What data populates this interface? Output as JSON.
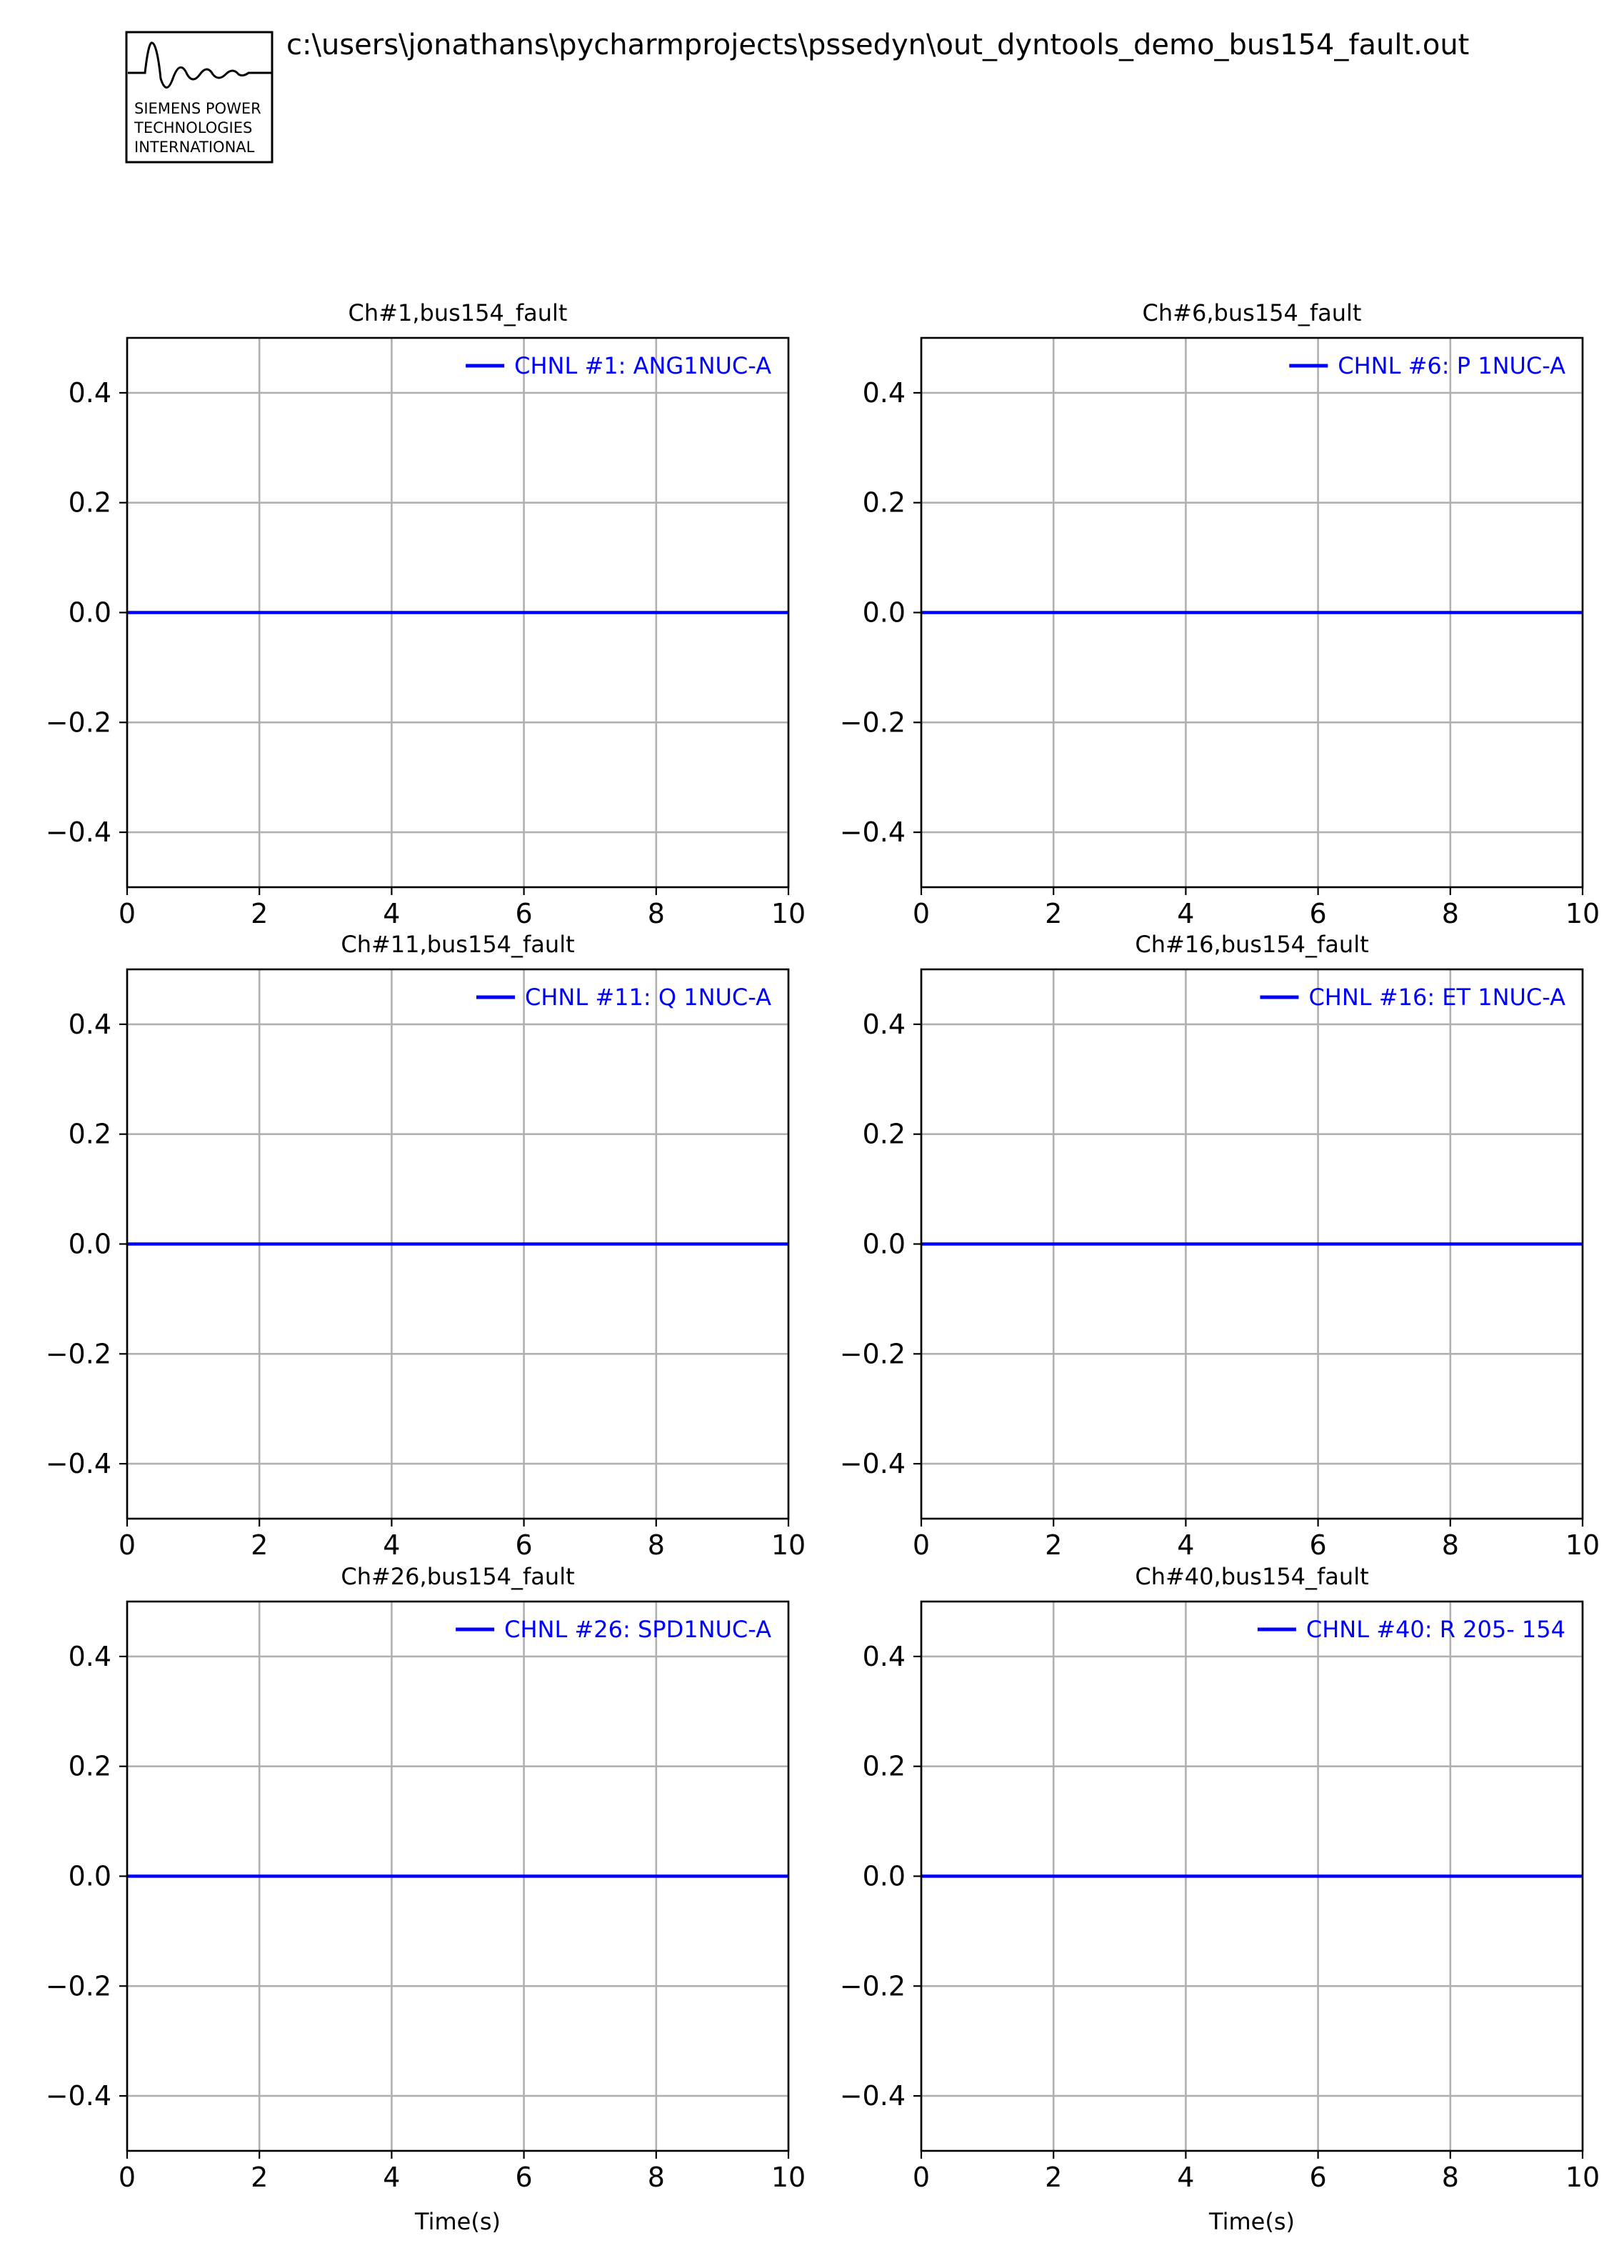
{
  "file_path": "c:\\users\\jonathans\\pycharmprojects\\pssedyn\\out_dyntools_demo_bus154_fault.out",
  "logo": {
    "lines": [
      "SIEMENS POWER",
      "TECHNOLOGIES",
      "INTERNATIONAL"
    ]
  },
  "colors": {
    "series": "#0000ff",
    "grid": "#b0b0b0",
    "axes": "#000000"
  },
  "chart_data": [
    {
      "type": "line",
      "title": "Ch#1,bus154_fault",
      "xlabel": "",
      "ylabel": "",
      "xlim": [
        0,
        10
      ],
      "ylim": [
        -0.5,
        0.5
      ],
      "xticks": [
        0,
        2,
        4,
        6,
        8,
        10
      ],
      "yticks": [
        0.4,
        0.2,
        0.0,
        -0.2,
        -0.4
      ],
      "xtick_labels": [
        "0",
        "2",
        "4",
        "6",
        "8",
        "10"
      ],
      "ytick_labels": [
        "0.4",
        "0.2",
        "0.0",
        "−0.2",
        "−0.4"
      ],
      "grid": true,
      "legend_position": "top-right",
      "series": [
        {
          "name": "CHNL #1: ANG1NUC-A",
          "x": [
            0,
            10
          ],
          "y": [
            0,
            0
          ]
        }
      ]
    },
    {
      "type": "line",
      "title": "Ch#6,bus154_fault",
      "xlabel": "",
      "ylabel": "",
      "xlim": [
        0,
        10
      ],
      "ylim": [
        -0.5,
        0.5
      ],
      "xticks": [
        0,
        2,
        4,
        6,
        8,
        10
      ],
      "yticks": [
        0.4,
        0.2,
        0.0,
        -0.2,
        -0.4
      ],
      "xtick_labels": [
        "0",
        "2",
        "4",
        "6",
        "8",
        "10"
      ],
      "ytick_labels": [
        "0.4",
        "0.2",
        "0.0",
        "−0.2",
        "−0.4"
      ],
      "grid": true,
      "legend_position": "top-right",
      "series": [
        {
          "name": "CHNL #6: P 1NUC-A",
          "x": [
            0,
            10
          ],
          "y": [
            0,
            0
          ]
        }
      ]
    },
    {
      "type": "line",
      "title": "Ch#11,bus154_fault",
      "xlabel": "",
      "ylabel": "",
      "xlim": [
        0,
        10
      ],
      "ylim": [
        -0.5,
        0.5
      ],
      "xticks": [
        0,
        2,
        4,
        6,
        8,
        10
      ],
      "yticks": [
        0.4,
        0.2,
        0.0,
        -0.2,
        -0.4
      ],
      "xtick_labels": [
        "0",
        "2",
        "4",
        "6",
        "8",
        "10"
      ],
      "ytick_labels": [
        "0.4",
        "0.2",
        "0.0",
        "−0.2",
        "−0.4"
      ],
      "grid": true,
      "legend_position": "top-right",
      "series": [
        {
          "name": "CHNL #11: Q 1NUC-A",
          "x": [
            0,
            10
          ],
          "y": [
            0,
            0
          ]
        }
      ]
    },
    {
      "type": "line",
      "title": "Ch#16,bus154_fault",
      "xlabel": "",
      "ylabel": "",
      "xlim": [
        0,
        10
      ],
      "ylim": [
        -0.5,
        0.5
      ],
      "xticks": [
        0,
        2,
        4,
        6,
        8,
        10
      ],
      "yticks": [
        0.4,
        0.2,
        0.0,
        -0.2,
        -0.4
      ],
      "xtick_labels": [
        "0",
        "2",
        "4",
        "6",
        "8",
        "10"
      ],
      "ytick_labels": [
        "0.4",
        "0.2",
        "0.0",
        "−0.2",
        "−0.4"
      ],
      "grid": true,
      "legend_position": "top-right",
      "series": [
        {
          "name": "CHNL #16: ET 1NUC-A",
          "x": [
            0,
            10
          ],
          "y": [
            0,
            0
          ]
        }
      ]
    },
    {
      "type": "line",
      "title": "Ch#26,bus154_fault",
      "xlabel": "Time(s)",
      "ylabel": "",
      "xlim": [
        0,
        10
      ],
      "ylim": [
        -0.5,
        0.5
      ],
      "xticks": [
        0,
        2,
        4,
        6,
        8,
        10
      ],
      "yticks": [
        0.4,
        0.2,
        0.0,
        -0.2,
        -0.4
      ],
      "xtick_labels": [
        "0",
        "2",
        "4",
        "6",
        "8",
        "10"
      ],
      "ytick_labels": [
        "0.4",
        "0.2",
        "0.0",
        "−0.2",
        "−0.4"
      ],
      "grid": true,
      "legend_position": "top-right",
      "series": [
        {
          "name": "CHNL #26: SPD1NUC-A",
          "x": [
            0,
            10
          ],
          "y": [
            0,
            0
          ]
        }
      ]
    },
    {
      "type": "line",
      "title": "Ch#40,bus154_fault",
      "xlabel": "Time(s)",
      "ylabel": "",
      "xlim": [
        0,
        10
      ],
      "ylim": [
        -0.5,
        0.5
      ],
      "xticks": [
        0,
        2,
        4,
        6,
        8,
        10
      ],
      "yticks": [
        0.4,
        0.2,
        0.0,
        -0.2,
        -0.4
      ],
      "xtick_labels": [
        "0",
        "2",
        "4",
        "6",
        "8",
        "10"
      ],
      "ytick_labels": [
        "0.4",
        "0.2",
        "0.0",
        "−0.2",
        "−0.4"
      ],
      "grid": true,
      "legend_position": "top-right",
      "series": [
        {
          "name": "CHNL #40: R 205- 154",
          "x": [
            0,
            10
          ],
          "y": [
            0,
            0
          ]
        }
      ]
    }
  ]
}
